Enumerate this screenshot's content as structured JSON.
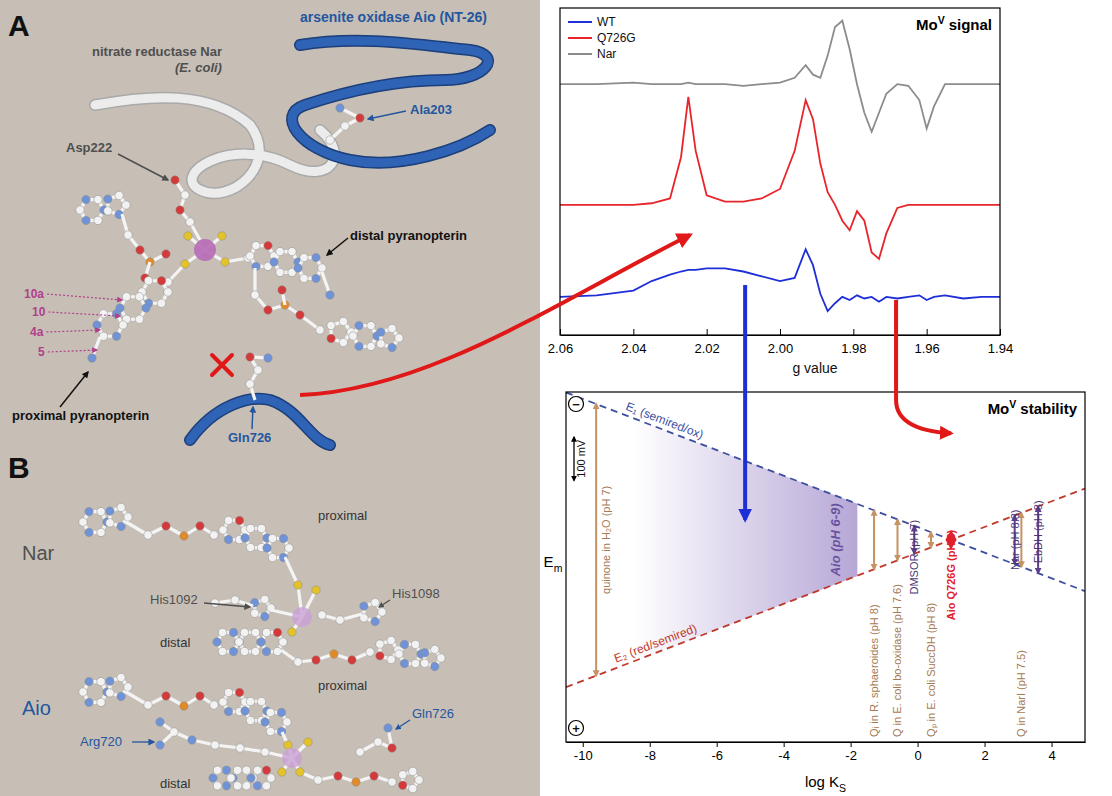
{
  "panel_a": {
    "letter": "A",
    "aio_title": "arsenite oxidase Aio (NT-26)",
    "nar_title": [
      "nitrate reductase Nar",
      "(E. coli)"
    ],
    "residue_aio": "Ala203",
    "residue_nar": "Asp222",
    "distal": "distal pyranopterin",
    "proximal": "proximal pyranopterin",
    "atoms": [
      "10a",
      "10",
      "4a",
      "5"
    ],
    "gln": "Gln726"
  },
  "panel_b": {
    "letter": "B",
    "nar": {
      "name": "Nar",
      "proximal": "proximal",
      "distal": "distal",
      "residues": [
        "His1092",
        "His1098"
      ]
    },
    "aio": {
      "name": "Aio",
      "proximal": "proximal",
      "distal": "distal",
      "residues": [
        "Arg720",
        "Gln726"
      ]
    }
  },
  "chart_data": [
    {
      "type": "line",
      "title": {
        "text": "Mo",
        "superscript": "V",
        "after": "signal"
      },
      "x_label": "g value",
      "legend": "upper left",
      "tick_labels": "x",
      "xlim": [
        2.06,
        1.94
      ],
      "xticks": [
        2.06,
        2.04,
        2.02,
        {
          "value": 2.0,
          "label": "2.00"
        },
        1.98,
        1.96,
        1.94
      ],
      "ylim": [
        0,
        10.3
      ],
      "x": [
        2.06,
        2.05,
        2.04,
        2.035,
        2.03,
        2.027,
        2.025,
        2.023,
        2.02,
        2.015,
        2.01,
        2.005,
        2.0,
        1.996,
        1.993,
        1.991,
        1.989,
        1.987,
        1.985,
        1.983,
        1.981,
        1.979,
        1.977,
        1.975,
        1.973,
        1.971,
        1.968,
        1.965,
        1.962,
        1.96,
        1.958,
        1.955,
        1.95,
        1.945,
        1.94
      ],
      "series": [
        {
          "name": "WT",
          "color": "#1f2fd8",
          "values": [
            1.2,
            1.25,
            1.4,
            1.7,
            1.9,
            2.0,
            2.05,
            2.05,
            2.1,
            2.1,
            2.0,
            1.85,
            1.7,
            1.8,
            2.7,
            2.2,
            1.3,
            0.75,
            1.0,
            1.2,
            1.1,
            1.25,
            1.15,
            1.2,
            1.05,
            1.2,
            1.15,
            1.2,
            1.25,
            1.1,
            1.2,
            1.25,
            1.15,
            1.2,
            1.2
          ]
        },
        {
          "name": "Q726G",
          "color": "#e8252a",
          "values": [
            4.1,
            4.1,
            4.1,
            4.15,
            4.3,
            5.6,
            7.5,
            5.8,
            4.4,
            4.2,
            4.2,
            4.3,
            4.6,
            5.8,
            7.4,
            6.8,
            5.4,
            4.5,
            4.1,
            3.6,
            3.3,
            3.9,
            3.6,
            2.6,
            2.4,
            3.2,
            4.0,
            4.1,
            4.1,
            4.1,
            4.1,
            4.1,
            4.1,
            4.1,
            4.1
          ]
        },
        {
          "name": "Nar",
          "color": "#8c8c8c",
          "values": [
            7.9,
            7.9,
            7.95,
            7.9,
            7.9,
            7.9,
            7.95,
            7.9,
            7.9,
            7.9,
            7.85,
            7.9,
            7.95,
            8.1,
            8.5,
            8.2,
            8.1,
            8.8,
            9.7,
            9.9,
            9.0,
            7.9,
            7.0,
            6.4,
            7.0,
            7.6,
            7.9,
            7.85,
            7.4,
            6.5,
            7.2,
            7.9,
            7.9,
            7.9,
            7.9
          ]
        }
      ]
    },
    {
      "type": "line",
      "title": {
        "text": "Mo",
        "superscript": "V",
        "after": "stability"
      },
      "x_label": {
        "text": "log K",
        "subscript": "S"
      },
      "y_label": {
        "text": "E",
        "subscript": "m"
      },
      "y_end_labels": [
        "−",
        "+"
      ],
      "tick_labels": "x",
      "xlim": [
        -10.5,
        5
      ],
      "xticks": [
        -10,
        -8,
        -6,
        -4,
        -2,
        0,
        2,
        4
      ],
      "ylim": [
        465,
        -340
      ],
      "x": [
        -10.5,
        5
      ],
      "series": [
        {
          "name": "E₁ (semired/ox)",
          "color": "#3d4f9f",
          "line_style": "dashed",
          "values": [
            -339,
            118
          ]
        },
        {
          "name": "E₂ (red/semired)",
          "color": "#c0392b",
          "line_style": "dashed",
          "values": [
            339,
            -118
          ]
        }
      ],
      "region": {
        "name": "Aio (pH 6-9)",
        "color": "#7b5fb5",
        "x": [
          -8.5,
          -1.8
        ],
        "low": [
          -280,
          -83
        ],
        "high": [
          280,
          83
        ]
      },
      "ranges": [
        {
          "name": "quinone in H₂O (pH 7)",
          "x": -9.6,
          "low": -313,
          "high": 313,
          "color": "#c69262"
        },
        {
          "name": "Qᵢ in R. sphaeroides (pH 8)",
          "x": -1.3,
          "low": -68,
          "high": 68,
          "color": "#c69262"
        },
        {
          "name": "Q in E. coli bo-oxidase (pH 7.6)",
          "x": -0.6,
          "low": -47,
          "high": 47,
          "color": "#c69262"
        },
        {
          "name": "DMSOR (pH 7)",
          "x": -0.1,
          "low": -32,
          "high": 32,
          "color": "#5b3f8c"
        },
        {
          "name": "Qₚ in E. coli SuccDH (pH 8)",
          "x": 0.4,
          "low": -18,
          "high": 18,
          "color": "#c69262"
        },
        {
          "name": "Nar (pH 8.3)",
          "x": 2.9,
          "low": -56,
          "high": 56,
          "color": "#5b3f8c"
        },
        {
          "name": "Q in NarI (pH 7.5)",
          "x": 3.1,
          "low": -62,
          "high": 62,
          "color": "#c69262"
        },
        {
          "name": "EbDH (pH 8)",
          "x": 3.6,
          "low": -77,
          "high": 77,
          "color": "#5b3f8c"
        }
      ],
      "points": [
        {
          "name": "Aio Q726G (pH 6)",
          "x": 1.0,
          "value": 0,
          "color": "#e0202a",
          "marker": "diamond"
        }
      ],
      "scale_bar": {
        "value": 100,
        "label": "100 mV"
      }
    }
  ]
}
